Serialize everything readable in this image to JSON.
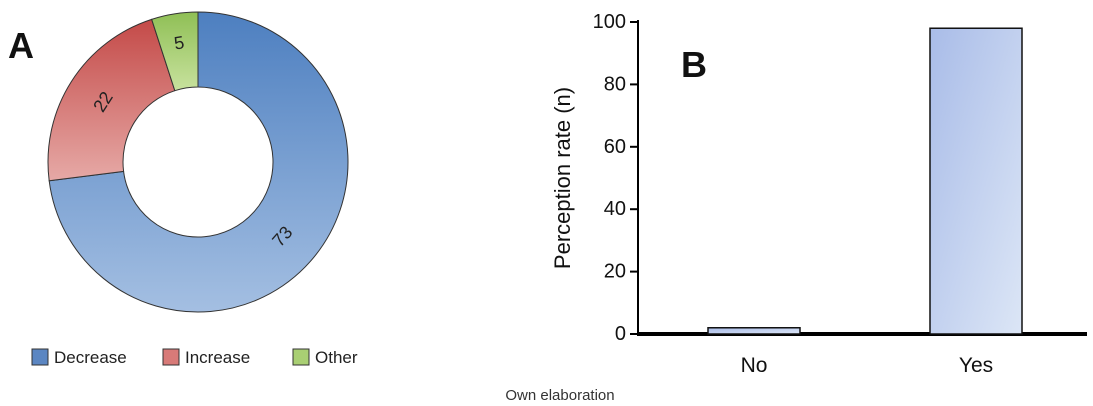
{
  "caption": "Own elaboration",
  "chart_data": [
    {
      "type": "pie",
      "panel_label": "A",
      "donut": true,
      "slices": [
        {
          "label": "Decrease",
          "value": 73,
          "color": "#5b86c2"
        },
        {
          "label": "Increase",
          "value": 22,
          "color": "#cf6a68"
        },
        {
          "label": "Other",
          "value": 5,
          "color": "#9fc766"
        }
      ],
      "legend": {
        "position": "bottom-left",
        "entries": [
          "Decrease",
          "Increase",
          "Other"
        ]
      }
    },
    {
      "type": "bar",
      "panel_label": "B",
      "categories": [
        "No",
        "Yes"
      ],
      "values": [
        2,
        98
      ],
      "ylabel": "Perception rate (n)",
      "xlabel": "",
      "ylim": [
        0,
        100
      ],
      "yticks": [
        0,
        20,
        40,
        60,
        80,
        100
      ],
      "bar_color": "#b7c8ea",
      "grid": false
    }
  ]
}
